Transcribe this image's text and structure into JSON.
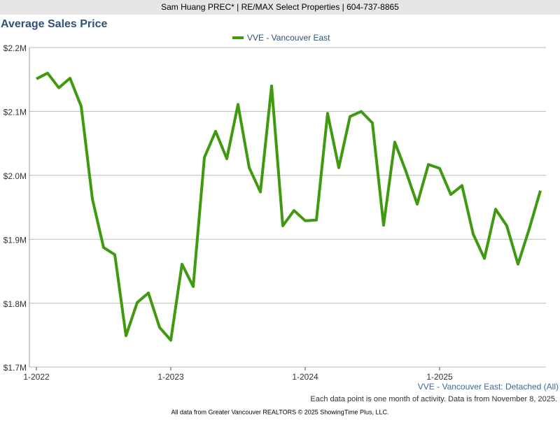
{
  "header": "Sam Huang PREC* | RE/MAX Select Properties | 604-737-8865",
  "chart_data": {
    "type": "line",
    "title": "Average Sales Price",
    "categories": [
      "1-2022",
      null,
      null,
      null,
      null,
      null,
      null,
      null,
      null,
      null,
      null,
      null,
      "1-2023",
      null,
      null,
      null,
      null,
      null,
      null,
      null,
      null,
      null,
      null,
      null,
      "1-2024",
      null,
      null,
      null,
      null,
      null,
      null,
      null,
      null,
      null,
      null,
      null,
      "1-2025",
      null,
      null,
      null,
      null,
      null,
      null,
      null,
      null,
      null
    ],
    "series": [
      {
        "name": "VVE - Vancouver East",
        "color": "#3f9a10",
        "values": [
          2151000,
          2160000,
          2137000,
          2152000,
          2108000,
          1963000,
          1887000,
          1876000,
          1749000,
          1801000,
          1816000,
          1762000,
          1742000,
          1861000,
          1826000,
          2028000,
          2069000,
          2026000,
          2111000,
          2012000,
          1974000,
          2140000,
          1921000,
          1945000,
          1929000,
          1930000,
          2097000,
          2012000,
          2092000,
          2100000,
          2082000,
          1922000,
          2052000,
          2006000,
          1955000,
          2017000,
          2011000,
          1970000,
          1984000,
          1908000,
          1870000,
          1947000,
          1921000,
          1861000,
          1916000,
          1976000
        ]
      }
    ],
    "ylim": [
      1700000,
      2200000
    ],
    "yticks": [
      {
        "value": 1700000,
        "label": "$1.7M"
      },
      {
        "value": 1800000,
        "label": "$1.8M"
      },
      {
        "value": 1900000,
        "label": "$1.9M"
      },
      {
        "value": 2000000,
        "label": "$2.0M"
      },
      {
        "value": 2100000,
        "label": "$2.1M"
      },
      {
        "value": 2200000,
        "label": "$2.2M"
      }
    ],
    "grid": true,
    "subtitle": "VVE - Vancouver East: Detached (All)",
    "note": "Each data point is one month of activity. Data is from November 8, 2025."
  },
  "footer": "All data from Greater Vancouver REALTORS © 2025 ShowingTime Plus, LLC."
}
